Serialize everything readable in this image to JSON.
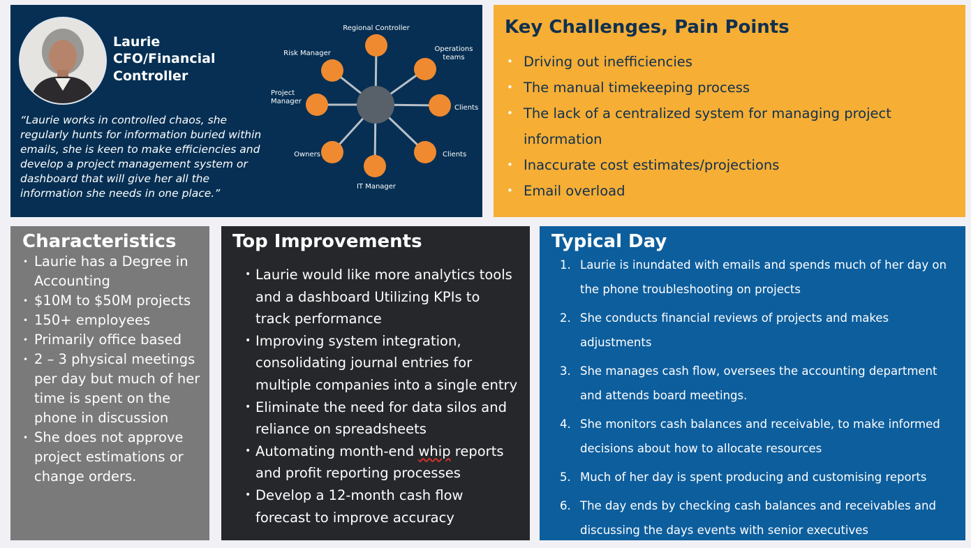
{
  "profile": {
    "name": "Laurie",
    "role": "CFO/Financial Controller",
    "quote": "“Laurie works in controlled chaos, she regularly hunts for information buried within emails, she is keen to make efficiencies and develop a project management system or dashboard that will give her all the information she needs in one place.”",
    "network_nodes": [
      {
        "label": "Regional Controller"
      },
      {
        "label": "Operations teams"
      },
      {
        "label": "Clients"
      },
      {
        "label": "Clients"
      },
      {
        "label": "IT Manager"
      },
      {
        "label": "Owners"
      },
      {
        "label": "Project Manager"
      },
      {
        "label": "Risk Manager"
      }
    ],
    "colors": {
      "panel": "#062f53",
      "node": "#f08a30",
      "hub": "#58606a",
      "spoke": "#b8c0c8"
    }
  },
  "challenges": {
    "title": "Key Challenges, Pain Points",
    "items": [
      "Driving out inefficiencies",
      "The manual timekeeping process",
      "The lack of a centralized system for managing project information",
      "Inaccurate cost estimates/projections",
      "Email overload"
    ],
    "color": "#f6ae35"
  },
  "characteristics": {
    "title": "Characteristics",
    "items": [
      "Laurie has a Degree in Accounting",
      "$10M to $50M projects",
      "150+ employees",
      "Primarily office based",
      "2 – 3 physical meetings per day but much of her time is spent on the phone in discussion",
      "She does not approve project estimations or change orders."
    ],
    "color": "#7a7a7a"
  },
  "improvements": {
    "title": "Top Improvements",
    "items": [
      "Laurie would like more analytics tools and a dashboard Utilizing KPIs to track performance",
      "Improving system integration, consolidating journal entries for multiple companies into a single entry",
      "Eliminate the need for data silos and reliance on spreadsheets",
      {
        "before": "Automating month-end ",
        "flagged": "whip",
        "after": " reports and profit reporting processes"
      },
      "Develop a 12-month cash flow forecast to improve accuracy"
    ],
    "color": "#25272b"
  },
  "typical_day": {
    "title": "Typical Day",
    "items": [
      {
        "num": "1.",
        "text": "Laurie is inundated with emails and spends much of her day on the phone troubleshooting on projects"
      },
      {
        "num": "2.",
        "text": "She conducts financial reviews of projects and makes adjustments"
      },
      {
        "num": "3.",
        "text": "She manages cash flow, oversees the accounting department and attends board meetings."
      },
      {
        "num": "4.",
        "text": "She monitors cash balances and receivable, to make informed decisions about how to allocate resources"
      },
      {
        "num": "5.",
        "text": "Much of her day is spent producing and customising reports"
      },
      {
        "num": "6.",
        "text": "The day ends by checking cash balances and receivables and discussing the days events with senior executives"
      }
    ],
    "color": "#0d5e9d"
  }
}
